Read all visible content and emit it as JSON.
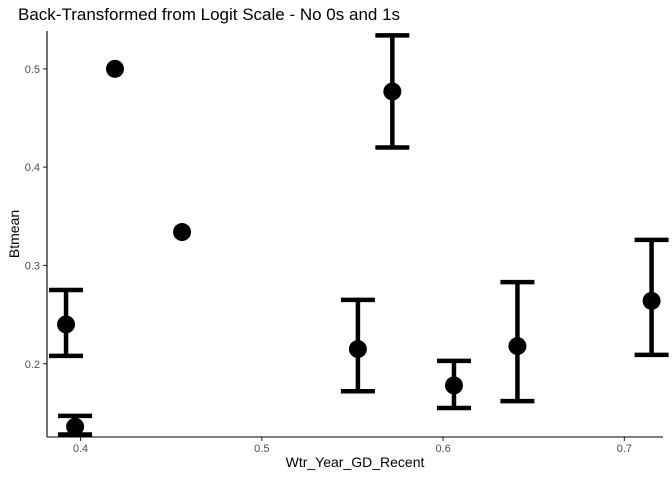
{
  "chart_data": {
    "type": "scatter",
    "title": "Back-Transformed from Logit Scale - No 0s and 1s",
    "xlabel": "Wtr_Year_GD_Recent",
    "ylabel": "Btmean",
    "xlim": [
      0.3815,
      0.7213
    ],
    "ylim": [
      0.1255,
      0.5385
    ],
    "x_ticks": [
      0.4,
      0.5,
      0.6,
      0.7
    ],
    "x_tick_labels": [
      "0.4",
      "0.5",
      "0.6",
      "0.7"
    ],
    "y_ticks": [
      0.2,
      0.3,
      0.4,
      0.5
    ],
    "y_tick_labels": [
      "0.2",
      "0.3",
      "0.4",
      "0.5"
    ],
    "grid": false,
    "error_bars": true,
    "points": [
      {
        "x": 0.397,
        "y": 0.136,
        "lower": 0.128,
        "upper": 0.147
      },
      {
        "x": 0.392,
        "y": 0.24,
        "lower": 0.208,
        "upper": 0.275
      },
      {
        "x": 0.419,
        "y": 0.5,
        "lower": null,
        "upper": null
      },
      {
        "x": 0.456,
        "y": 0.334,
        "lower": null,
        "upper": null
      },
      {
        "x": 0.553,
        "y": 0.215,
        "lower": 0.172,
        "upper": 0.265
      },
      {
        "x": 0.572,
        "y": 0.477,
        "lower": 0.42,
        "upper": 0.534
      },
      {
        "x": 0.606,
        "y": 0.178,
        "lower": 0.155,
        "upper": 0.203
      },
      {
        "x": 0.641,
        "y": 0.218,
        "lower": 0.162,
        "upper": 0.283
      },
      {
        "x": 0.715,
        "y": 0.264,
        "lower": 0.209,
        "upper": 0.326
      }
    ],
    "point_color": "#000000",
    "background": "#ffffff"
  }
}
